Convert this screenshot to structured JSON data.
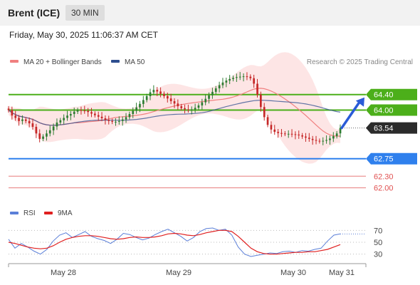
{
  "header": {
    "title": "Brent (ICE)",
    "timeframe": "30 MIN"
  },
  "timestamp": "Friday, May 30, 2025 11:06:37 AM CET",
  "legend": {
    "ma20": "MA 20 + Bollinger Bands",
    "ma50": "MA 50",
    "credit": "Research © 2025 Trading Central"
  },
  "colors": {
    "ma20": "#f08080",
    "ma50": "#2e4e8f",
    "bull": "#2e7d32",
    "bear": "#c62828",
    "resistance": "#4caf1a",
    "support": "#2f80ed",
    "minor": "#e05050",
    "price": "#333333",
    "rsi": "#5b7fd8",
    "rsi_ma": "#e02020",
    "band": "#fde0e0"
  },
  "chart_data": [
    {
      "type": "candlestick",
      "title": "Brent (ICE) 30 MIN",
      "x_labels": [
        "May 28",
        "May 29",
        "May 30",
        "May 31"
      ],
      "ylim": [
        61.7,
        65.0
      ],
      "close": [
        64.0,
        63.86,
        63.8,
        63.72,
        63.76,
        63.72,
        63.66,
        63.57,
        63.4,
        63.26,
        63.32,
        63.4,
        63.48,
        63.58,
        63.68,
        63.74,
        63.8,
        63.86,
        63.9,
        63.96,
        64.0,
        63.99,
        63.98,
        63.95,
        63.91,
        63.87,
        63.83,
        63.79,
        63.75,
        63.72,
        63.7,
        63.7,
        63.72,
        63.76,
        63.82,
        63.9,
        63.98,
        64.07,
        64.16,
        64.26,
        64.36,
        64.46,
        64.52,
        64.48,
        64.42,
        64.36,
        64.3,
        64.23,
        64.17,
        64.1,
        64.05,
        64.02,
        64.01,
        64.02,
        64.06,
        64.12,
        64.2,
        64.29,
        64.38,
        64.47,
        64.56,
        64.64,
        64.71,
        64.76,
        64.8,
        64.83,
        64.85,
        64.86,
        64.87,
        64.86,
        64.82,
        64.68,
        64.4,
        64.08,
        63.82,
        63.62,
        63.5,
        63.44,
        63.41,
        63.4,
        63.39,
        63.39,
        63.38,
        63.37,
        63.35,
        63.32,
        63.29,
        63.26,
        63.23,
        63.21,
        63.2,
        63.21,
        63.23,
        63.27,
        63.33,
        63.4,
        63.54
      ],
      "current_price": 63.54,
      "levels": [
        {
          "value": 64.4,
          "label": "64.40",
          "kind": "resistance"
        },
        {
          "value": 64.0,
          "label": "64.00",
          "kind": "resistance"
        },
        {
          "value": 63.54,
          "label": "63.54",
          "kind": "price"
        },
        {
          "value": 62.75,
          "label": "62.75",
          "kind": "support"
        },
        {
          "value": 62.3,
          "label": "62.30",
          "kind": "minor"
        },
        {
          "value": 62.0,
          "label": "62.00",
          "kind": "minor"
        }
      ],
      "series": [
        {
          "name": "MA 20 + Bollinger Bands",
          "type": "line",
          "color": "#f08080"
        },
        {
          "name": "MA 50",
          "type": "line",
          "color": "#2e4e8f"
        }
      ]
    },
    {
      "type": "line",
      "title": "RSI",
      "yticks": [
        70,
        50,
        30
      ],
      "ylim": [
        20,
        80
      ],
      "series": [
        {
          "name": "RSI",
          "color": "#5b7fd8",
          "values": [
            55,
            40,
            48,
            42,
            35,
            30,
            38,
            52,
            62,
            66,
            58,
            63,
            68,
            60,
            56,
            53,
            48,
            55,
            65,
            63,
            58,
            54,
            57,
            63,
            68,
            72,
            66,
            60,
            52,
            58,
            68,
            73,
            74,
            70,
            72,
            62,
            42,
            30,
            26,
            28,
            30,
            32,
            31,
            34,
            35,
            33,
            36,
            35,
            38,
            40,
            52,
            62,
            64
          ]
        },
        {
          "name": "9MA",
          "color": "#e02020",
          "values": [
            50,
            48,
            45,
            42,
            40,
            39,
            40,
            44,
            50,
            55,
            58,
            60,
            61,
            61,
            60,
            58,
            56,
            55,
            56,
            58,
            59,
            58,
            58,
            59,
            61,
            64,
            65,
            64,
            62,
            61,
            63,
            66,
            68,
            70,
            70,
            68,
            60,
            50,
            40,
            34,
            31,
            30,
            30,
            31,
            32,
            33,
            33,
            34,
            34,
            36,
            38,
            42,
            46
          ]
        }
      ]
    }
  ]
}
